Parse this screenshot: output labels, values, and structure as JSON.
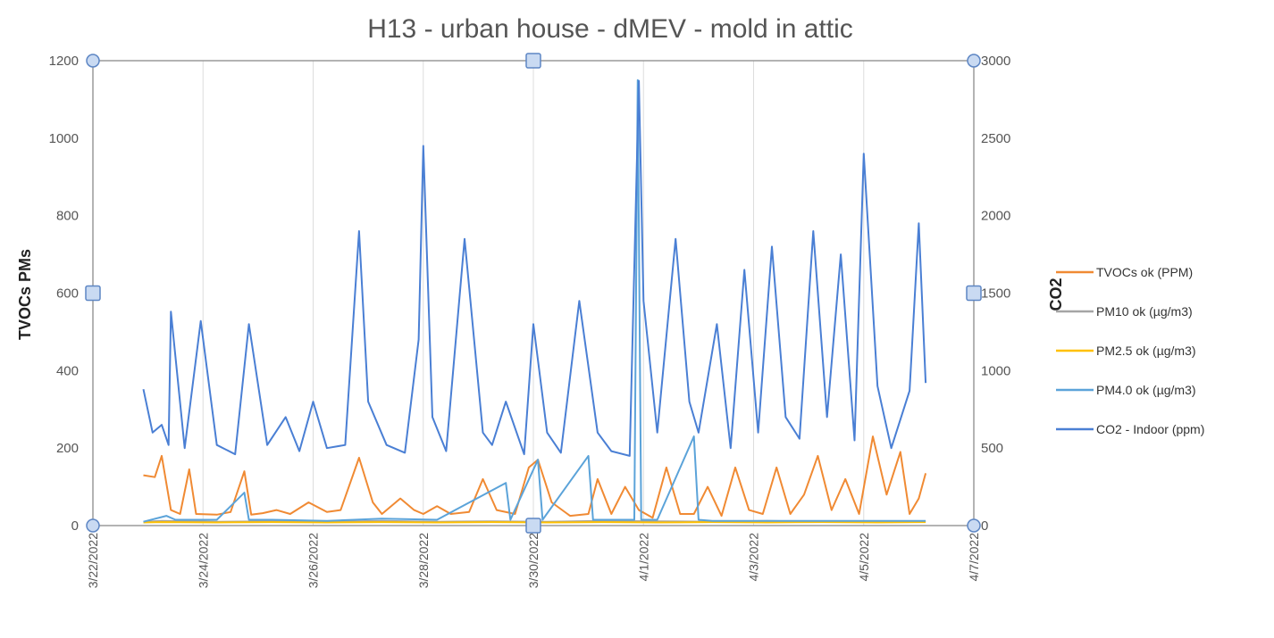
{
  "chart_data": {
    "type": "line",
    "title": "H13 - urban house - dMEV - mold in attic",
    "xlabel": "",
    "ylabel_left": "TVOCs PMs",
    "ylabel_right": "CO2",
    "xlim": [
      "3/22/2022",
      "4/7/2022"
    ],
    "ylim_left": [
      0,
      1200
    ],
    "ylim_right": [
      0,
      3000
    ],
    "x_ticks": [
      "3/22/2022",
      "3/24/2022",
      "3/26/2022",
      "3/28/2022",
      "3/30/2022",
      "4/1/2022",
      "4/3/2022",
      "4/5/2022",
      "4/7/2022"
    ],
    "y_ticks_left": [
      "0",
      "200",
      "400",
      "600",
      "800",
      "1000",
      "1200"
    ],
    "y_ticks_right": [
      "0",
      "500",
      "1000",
      "1500",
      "2000",
      "2500",
      "3000"
    ],
    "grid": "vertical",
    "legend_position": "right",
    "series": [
      {
        "name": "TVOCs ok (PPM)",
        "axis": "left",
        "color": "#f08a33",
        "x": [
          "3/22/2022 22:00",
          "3/23/2022 03:00",
          "3/23/2022 06:00",
          "3/23/2022 10:00",
          "3/23/2022 14:00",
          "3/23/2022 18:00",
          "3/23/2022 21:00",
          "3/24/2022 06:00",
          "3/24/2022 12:00",
          "3/24/2022 18:00",
          "3/24/2022 21:00",
          "3/25/2022 02:00",
          "3/25/2022 08:00",
          "3/25/2022 14:00",
          "3/25/2022 22:00",
          "3/26/2022 06:00",
          "3/26/2022 12:00",
          "3/26/2022 20:00",
          "3/27/2022 02:00",
          "3/27/2022 06:00",
          "3/27/2022 14:00",
          "3/27/2022 20:00",
          "3/28/2022 00:00",
          "3/28/2022 06:00",
          "3/28/2022 12:00",
          "3/28/2022 20:00",
          "3/29/2022 02:00",
          "3/29/2022 08:00",
          "3/29/2022 16:00",
          "3/29/2022 22:00",
          "3/30/2022 02:00",
          "3/30/2022 08:00",
          "3/30/2022 16:00",
          "3/31/2022 00:00",
          "3/31/2022 04:00",
          "3/31/2022 10:00",
          "3/31/2022 16:00",
          "3/31/2022 22:00",
          "4/1/2022 04:00",
          "4/1/2022 10:00",
          "4/1/2022 16:00",
          "4/1/2022 22:00",
          "4/2/2022 04:00",
          "4/2/2022 10:00",
          "4/2/2022 16:00",
          "4/2/2022 22:00",
          "4/3/2022 04:00",
          "4/3/2022 10:00",
          "4/3/2022 16:00",
          "4/3/2022 22:00",
          "4/4/2022 04:00",
          "4/4/2022 10:00",
          "4/4/2022 16:00",
          "4/4/2022 22:00",
          "4/5/2022 04:00",
          "4/5/2022 10:00",
          "4/5/2022 16:00",
          "4/5/2022 20:00",
          "4/6/2022 00:00",
          "4/6/2022 03:00"
        ],
        "values": [
          130,
          125,
          180,
          40,
          30,
          145,
          30,
          28,
          35,
          140,
          28,
          32,
          40,
          30,
          60,
          35,
          40,
          175,
          60,
          30,
          70,
          40,
          30,
          50,
          30,
          35,
          120,
          40,
          30,
          150,
          170,
          60,
          25,
          30,
          120,
          30,
          100,
          40,
          20,
          150,
          30,
          30,
          100,
          25,
          150,
          40,
          30,
          150,
          30,
          80,
          180,
          40,
          120,
          30,
          230,
          80,
          190,
          30,
          70,
          135
        ]
      },
      {
        "name": "PM10 ok (µg/m3)",
        "axis": "left",
        "color": "#a5a5a5",
        "x": [
          "3/22/2022 22:00",
          "3/23/2022 06:00",
          "3/24/2022 06:00",
          "3/25/2022 06:00",
          "3/26/2022 06:00",
          "3/27/2022 06:00",
          "3/28/2022 06:00",
          "3/29/2022 06:00",
          "3/30/2022 06:00",
          "3/31/2022 06:00",
          "4/1/2022 06:00",
          "4/2/2022 06:00",
          "4/3/2022 06:00",
          "4/4/2022 06:00",
          "4/5/2022 06:00",
          "4/6/2022 03:00"
        ],
        "values": [
          10,
          12,
          10,
          11,
          10,
          12,
          10,
          11,
          10,
          12,
          11,
          10,
          12,
          10,
          11,
          10
        ]
      },
      {
        "name": "PM2.5 ok (µg/m3)",
        "axis": "left",
        "color": "#ffc000",
        "x": [
          "3/22/2022 22:00",
          "3/23/2022 06:00",
          "3/24/2022 06:00",
          "3/25/2022 06:00",
          "3/26/2022 06:00",
          "3/27/2022 06:00",
          "3/28/2022 06:00",
          "3/29/2022 06:00",
          "3/30/2022 06:00",
          "3/31/2022 06:00",
          "4/1/2022 06:00",
          "4/2/2022 06:00",
          "4/3/2022 06:00",
          "4/4/2022 06:00",
          "4/5/2022 06:00",
          "4/6/2022 03:00"
        ],
        "values": [
          8,
          9,
          8,
          9,
          8,
          9,
          8,
          9,
          8,
          9,
          8,
          9,
          8,
          9,
          8,
          9
        ]
      },
      {
        "name": "PM4.0 ok (µg/m3)",
        "axis": "left",
        "color": "#5ba3d9",
        "x": [
          "3/22/2022 22:00",
          "3/23/2022 08:00",
          "3/23/2022 12:00",
          "3/24/2022 06:00",
          "3/24/2022 18:00",
          "3/24/2022 20:00",
          "3/25/2022 06:00",
          "3/26/2022 06:00",
          "3/27/2022 06:00",
          "3/28/2022 06:00",
          "3/29/2022 12:00",
          "3/29/2022 14:00",
          "3/30/2022 02:00",
          "3/30/2022 04:00",
          "3/31/2022 00:00",
          "3/31/2022 02:00",
          "3/31/2022 20:00",
          "3/31/2022 21:30",
          "3/31/2022 23:00",
          "4/1/2022 06:00",
          "4/1/2022 22:00",
          "4/2/2022 00:00",
          "4/2/2022 06:00",
          "4/3/2022 06:00",
          "4/4/2022 06:00",
          "4/5/2022 06:00",
          "4/6/2022 03:00"
        ],
        "values": [
          10,
          25,
          15,
          15,
          85,
          15,
          15,
          12,
          18,
          15,
          110,
          15,
          170,
          15,
          180,
          15,
          15,
          1150,
          15,
          15,
          230,
          15,
          12,
          12,
          12,
          12,
          12
        ]
      },
      {
        "name": "CO2 - Indoor (ppm)",
        "axis": "right",
        "color": "#4a7fd4",
        "x": [
          "3/22/2022 22:00",
          "3/23/2022 02:00",
          "3/23/2022 06:00",
          "3/23/2022 09:00",
          "3/23/2022 10:00",
          "3/23/2022 16:00",
          "3/23/2022 23:00",
          "3/24/2022 06:00",
          "3/24/2022 14:00",
          "3/24/2022 20:00",
          "3/25/2022 04:00",
          "3/25/2022 12:00",
          "3/25/2022 18:00",
          "3/26/2022 00:00",
          "3/26/2022 06:00",
          "3/26/2022 14:00",
          "3/26/2022 20:00",
          "3/27/2022 00:00",
          "3/27/2022 08:00",
          "3/27/2022 16:00",
          "3/27/2022 22:00",
          "3/28/2022 00:00",
          "3/28/2022 04:00",
          "3/28/2022 10:00",
          "3/28/2022 18:00",
          "3/29/2022 02:00",
          "3/29/2022 06:00",
          "3/29/2022 12:00",
          "3/29/2022 20:00",
          "3/30/2022 00:00",
          "3/30/2022 06:00",
          "3/30/2022 12:00",
          "3/30/2022 20:00",
          "3/31/2022 04:00",
          "3/31/2022 10:00",
          "3/31/2022 18:00",
          "3/31/2022 22:00",
          "4/1/2022 00:00",
          "4/1/2022 06:00",
          "4/1/2022 14:00",
          "4/1/2022 20:00",
          "4/2/2022 00:00",
          "4/2/2022 08:00",
          "4/2/2022 14:00",
          "4/2/2022 20:00",
          "4/3/2022 02:00",
          "4/3/2022 08:00",
          "4/3/2022 14:00",
          "4/3/2022 20:00",
          "4/4/2022 02:00",
          "4/4/2022 08:00",
          "4/4/2022 14:00",
          "4/4/2022 20:00",
          "4/5/2022 00:00",
          "4/5/2022 06:00",
          "4/5/2022 12:00",
          "4/5/2022 20:00",
          "4/6/2022 00:00",
          "4/6/2022 03:00"
        ],
        "values": [
          880,
          600,
          650,
          520,
          1380,
          500,
          1320,
          520,
          460,
          1300,
          520,
          700,
          480,
          800,
          500,
          520,
          1900,
          800,
          520,
          470,
          1200,
          2450,
          700,
          480,
          1850,
          600,
          520,
          800,
          460,
          1300,
          600,
          470,
          1450,
          600,
          480,
          450,
          2870,
          1450,
          600,
          1850,
          800,
          600,
          1300,
          500,
          1650,
          600,
          1800,
          700,
          560,
          1900,
          700,
          1750,
          550,
          2400,
          900,
          500,
          870,
          1950,
          920
        ]
      }
    ]
  }
}
